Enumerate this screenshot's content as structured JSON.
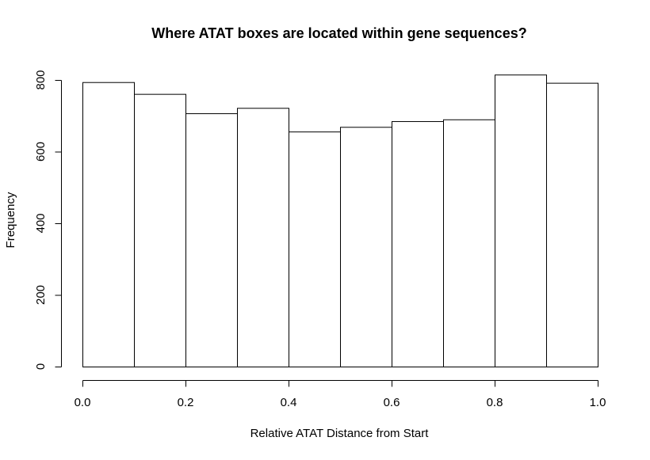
{
  "chart_data": {
    "type": "bar",
    "title": "Where ATAT boxes are located within gene sequences?",
    "xlabel": "Relative ATAT Distance from Start",
    "ylabel": "Frequency",
    "bin_edges": [
      0.0,
      0.1,
      0.2,
      0.3,
      0.4,
      0.5,
      0.6,
      0.7,
      0.8,
      0.9,
      1.0
    ],
    "values": [
      794,
      761,
      707,
      722,
      656,
      669,
      685,
      690,
      815,
      792
    ],
    "xlim": [
      0.0,
      1.0
    ],
    "ylim": [
      0,
      815
    ],
    "xticks": [
      0.0,
      0.2,
      0.4,
      0.6,
      0.8,
      1.0
    ],
    "xtick_labels": [
      "0.0",
      "0.2",
      "0.4",
      "0.6",
      "0.8",
      "1.0"
    ],
    "yticks": [
      0,
      200,
      400,
      600,
      800
    ],
    "ytick_labels": [
      "0",
      "200",
      "400",
      "600",
      "800"
    ],
    "grid": false,
    "legend": "none",
    "bar_fill": "#ffffff",
    "bar_stroke": "#000000"
  }
}
